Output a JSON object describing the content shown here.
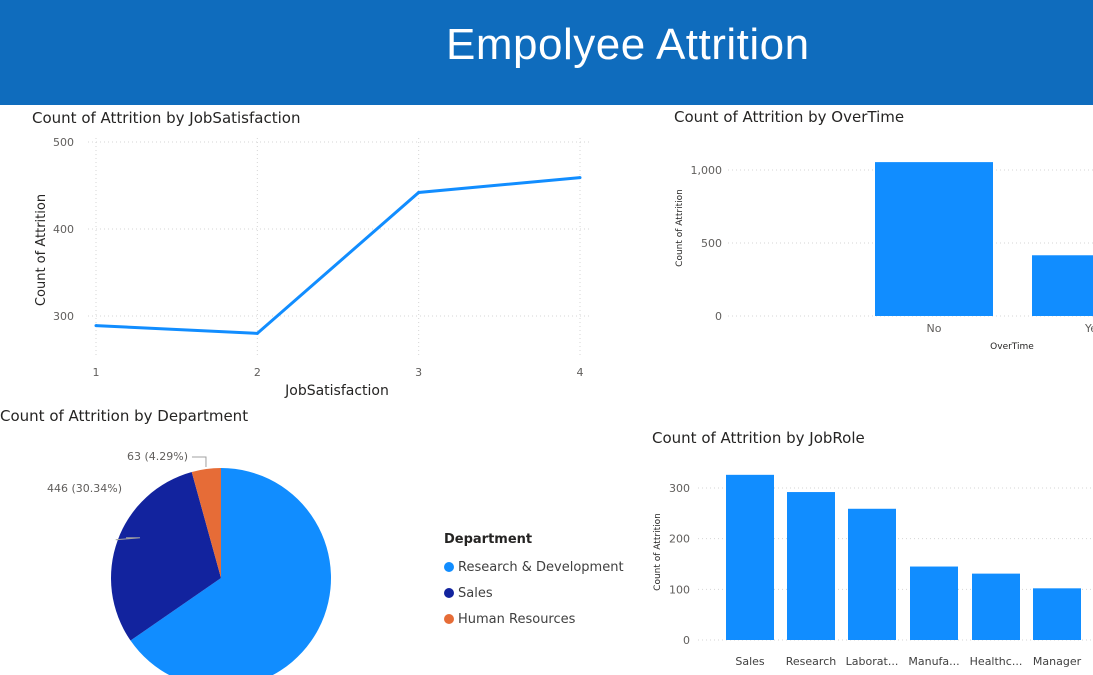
{
  "page": {
    "title": "Empolyee Attrition"
  },
  "colors": {
    "banner": "#0f6cbd",
    "bar": "#118dff",
    "line": "#118dff",
    "rd": "#118dff",
    "sales": "#12239e",
    "hr": "#e66c37"
  },
  "chart_data": [
    {
      "type": "line",
      "title": "Count of Attrition by JobSatisfaction",
      "xlabel": "JobSatisfaction",
      "ylabel": "Count of Attrition",
      "x": [
        "1",
        "2",
        "3",
        "4"
      ],
      "values": [
        289,
        280,
        442,
        459
      ],
      "y_ticks": [
        "300",
        "400",
        "500"
      ],
      "ylim": [
        280,
        500
      ],
      "grid": true
    },
    {
      "type": "bar",
      "title": "Count of Attrition by OverTime",
      "xlabel": "OverTime",
      "ylabel": "Count of Attrition",
      "categories": [
        "No",
        "Ye"
      ],
      "values": [
        1054,
        416
      ],
      "y_ticks": [
        "0",
        "500",
        "1,000"
      ],
      "ylim": [
        0,
        1050
      ],
      "grid": true
    },
    {
      "type": "pie",
      "title": "Count of Attrition by Department",
      "legend_title": "Department",
      "legend_position": "right",
      "slices": [
        {
          "name": "Research & Development",
          "value": 961,
          "label": ""
        },
        {
          "name": "Sales",
          "value": 446,
          "label": "446 (30.34%)"
        },
        {
          "name": "Human Resources",
          "value": 63,
          "label": "63 (4.29%)"
        }
      ]
    },
    {
      "type": "bar",
      "title": "Count of Attrition by JobRole",
      "xlabel": "",
      "ylabel": "Count of Attrition",
      "categories": [
        "Sales",
        "Research",
        "Laborat...",
        "Manufa...",
        "Healthc...",
        "Manager"
      ],
      "values": [
        326,
        292,
        259,
        145,
        131,
        102
      ],
      "y_ticks": [
        "0",
        "100",
        "200",
        "300"
      ],
      "ylim": [
        0,
        300
      ],
      "grid": true
    }
  ]
}
